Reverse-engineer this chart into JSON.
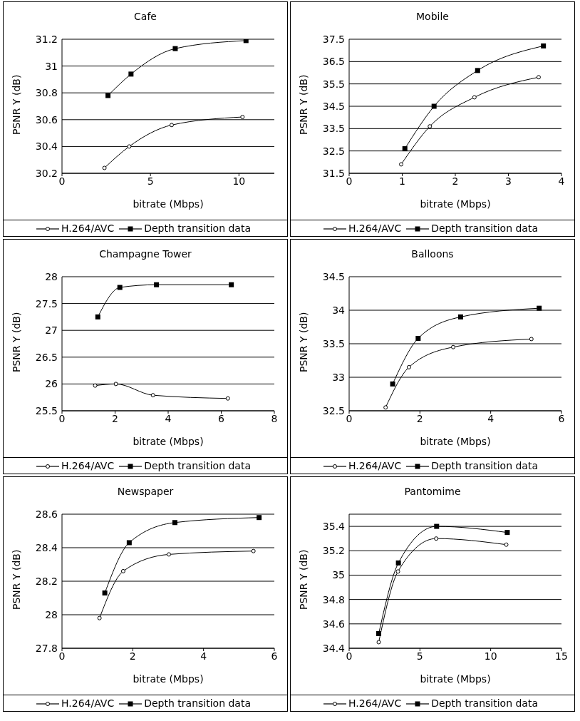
{
  "chart_data": [
    {
      "type": "line",
      "title": "Cafe",
      "xlabel": "bitrate (Mbps)",
      "ylabel": "PSNR Y (dB)",
      "xlim": [
        0,
        12
      ],
      "xticks": [
        0,
        5,
        10
      ],
      "ylim": [
        30.2,
        31.2
      ],
      "yticks": [
        30.2,
        30.4,
        30.6,
        30.8,
        31,
        31.2
      ],
      "grid": "y",
      "legend": "bottom",
      "series": [
        {
          "name": "H.264/AVC",
          "color": "#000000",
          "marker": "circle",
          "x": [
            2.4,
            3.8,
            6.2,
            10.2
          ],
          "values": [
            30.24,
            30.4,
            30.56,
            30.62
          ]
        },
        {
          "name": "Depth transition data",
          "color": "#000000",
          "marker": "square",
          "x": [
            2.6,
            3.9,
            6.4,
            10.4
          ],
          "values": [
            30.78,
            30.94,
            31.13,
            31.19
          ]
        }
      ]
    },
    {
      "type": "line",
      "title": "Mobile",
      "xlabel": "bitrate (Mbps)",
      "ylabel": "PSNR Y (dB)",
      "xlim": [
        0,
        4
      ],
      "xticks": [
        0,
        1,
        2,
        3,
        4
      ],
      "ylim": [
        31.5,
        37.5
      ],
      "yticks": [
        31.5,
        32.5,
        33.5,
        34.5,
        35.5,
        36.5,
        37.5
      ],
      "grid": "y",
      "legend": "bottom",
      "series": [
        {
          "name": "H.264/AVC",
          "color": "#000000",
          "marker": "circle",
          "x": [
            0.98,
            1.52,
            2.36,
            3.57
          ],
          "values": [
            31.9,
            33.6,
            34.9,
            35.8
          ]
        },
        {
          "name": "Depth transition data",
          "color": "#000000",
          "marker": "square",
          "x": [
            1.05,
            1.6,
            2.42,
            3.66
          ],
          "values": [
            32.6,
            34.5,
            36.1,
            37.2
          ]
        }
      ]
    },
    {
      "type": "line",
      "title": "Champagne Tower",
      "xlabel": "bitrate (Mbps)",
      "ylabel": "PSNR Y (dB)",
      "xlim": [
        0,
        8
      ],
      "xticks": [
        0,
        2,
        4,
        6,
        8
      ],
      "ylim": [
        25.5,
        28
      ],
      "yticks": [
        25.5,
        26,
        26.5,
        27,
        27.5,
        28
      ],
      "grid": "y",
      "legend": "bottom",
      "series": [
        {
          "name": "H.264/AVC",
          "color": "#000000",
          "marker": "circle",
          "x": [
            1.25,
            2.03,
            3.43,
            6.25
          ],
          "values": [
            25.97,
            26.0,
            25.79,
            25.73
          ]
        },
        {
          "name": "Depth transition data",
          "color": "#000000",
          "marker": "square",
          "x": [
            1.35,
            2.18,
            3.56,
            6.38
          ],
          "values": [
            27.25,
            27.8,
            27.85,
            27.85
          ]
        }
      ]
    },
    {
      "type": "line",
      "title": "Balloons",
      "xlabel": "bitrate (Mbps)",
      "ylabel": "PSNR Y (dB)",
      "xlim": [
        0,
        6
      ],
      "xticks": [
        0,
        2,
        4,
        6
      ],
      "ylim": [
        32.5,
        34.5
      ],
      "yticks": [
        32.5,
        33,
        33.5,
        34,
        34.5
      ],
      "grid": "y",
      "legend": "bottom",
      "series": [
        {
          "name": "H.264/AVC",
          "color": "#000000",
          "marker": "circle",
          "x": [
            1.03,
            1.69,
            2.94,
            5.15
          ],
          "values": [
            32.55,
            33.15,
            33.45,
            33.57
          ]
        },
        {
          "name": "Depth transition data",
          "color": "#000000",
          "marker": "square",
          "x": [
            1.23,
            1.95,
            3.15,
            5.37
          ],
          "values": [
            32.9,
            33.58,
            33.9,
            34.03
          ]
        }
      ]
    },
    {
      "type": "line",
      "title": "Newspaper",
      "xlabel": "bitrate (Mbps)",
      "ylabel": "PSNR Y (dB)",
      "xlim": [
        0,
        6
      ],
      "xticks": [
        0,
        2,
        4,
        6
      ],
      "ylim": [
        27.8,
        28.6
      ],
      "yticks": [
        27.8,
        28,
        28.2,
        28.4,
        28.6
      ],
      "grid": "y",
      "legend": "bottom",
      "series": [
        {
          "name": "H.264/AVC",
          "color": "#000000",
          "marker": "circle",
          "x": [
            1.06,
            1.73,
            3.02,
            5.41
          ],
          "values": [
            27.98,
            28.26,
            28.36,
            28.38
          ]
        },
        {
          "name": "Depth transition data",
          "color": "#000000",
          "marker": "square",
          "x": [
            1.21,
            1.9,
            3.19,
            5.57
          ],
          "values": [
            28.13,
            28.43,
            28.55,
            28.58
          ]
        }
      ]
    },
    {
      "type": "line",
      "title": "Pantomime",
      "xlabel": "bitrate (Mbps)",
      "ylabel": "PSNR Y (dB)",
      "xlim": [
        0,
        15
      ],
      "xticks": [
        0,
        5,
        10,
        15
      ],
      "ylim": [
        34.4,
        35.5
      ],
      "yticks": [
        34.4,
        34.6,
        34.8,
        35,
        35.2,
        35.4
      ],
      "grid": "y",
      "legend": "bottom",
      "series": [
        {
          "name": "H.264/AVC",
          "color": "#000000",
          "marker": "circle",
          "x": [
            2.09,
            3.45,
            6.15,
            11.1
          ],
          "values": [
            34.45,
            35.03,
            35.3,
            35.25
          ]
        },
        {
          "name": "Depth transition data",
          "color": "#000000",
          "marker": "square",
          "x": [
            2.09,
            3.48,
            6.18,
            11.17
          ],
          "values": [
            34.52,
            35.1,
            35.4,
            35.35
          ]
        }
      ]
    }
  ]
}
